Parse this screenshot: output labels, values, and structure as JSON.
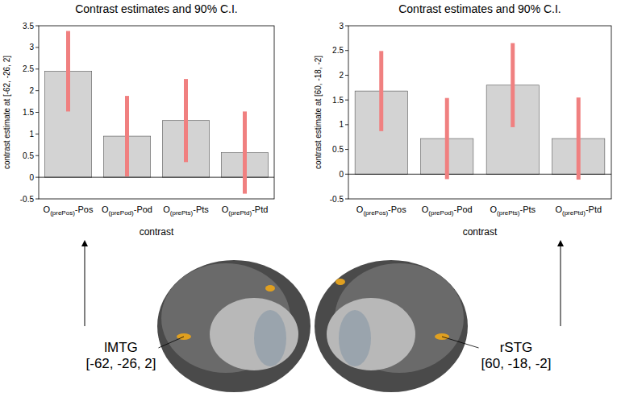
{
  "chart_data": [
    {
      "type": "bar",
      "title": "Contrast estimates and 90% C.I.",
      "x_label": "contrast",
      "y_label": "contrast estimate at [-62, -26, 2]",
      "categories": [
        "O(prePos)-Pos",
        "O(prePod)-Pod",
        "O(prePts)-Pts",
        "O(prePtd)-Ptd"
      ],
      "values": [
        2.45,
        0.95,
        1.31,
        0.57
      ],
      "errors": [
        0.93,
        0.93,
        0.96,
        0.95
      ],
      "color": "#d3d3d3",
      "ylim": [
        -0.5,
        3.5
      ],
      "yticks": [
        -0.5,
        0,
        0.5,
        1,
        1.5,
        2,
        2.5,
        3,
        3.5
      ],
      "grid": false,
      "annotations": [
        "lMTG",
        "[-62, -26, 2]"
      ]
    },
    {
      "type": "bar",
      "title": "Contrast estimates and 90% C.I.",
      "x_label": "contrast",
      "y_label": "contrast estimate at [60, -18, -2]",
      "categories": [
        "O(prePos)-Pos",
        "O(prePod)-Pod",
        "O(prePts)-Pts",
        "O(prePtd)-Ptd"
      ],
      "values": [
        1.68,
        0.72,
        1.8,
        0.72
      ],
      "errors": [
        0.81,
        0.82,
        0.85,
        0.83
      ],
      "color": "#d3d3d3",
      "ylim": [
        -0.5,
        3
      ],
      "yticks": [
        -0.5,
        0,
        0.5,
        1,
        1.5,
        2,
        2.5,
        3
      ],
      "grid": false,
      "annotations": [
        "rSTG",
        "[60, -18, -2]"
      ]
    }
  ]
}
